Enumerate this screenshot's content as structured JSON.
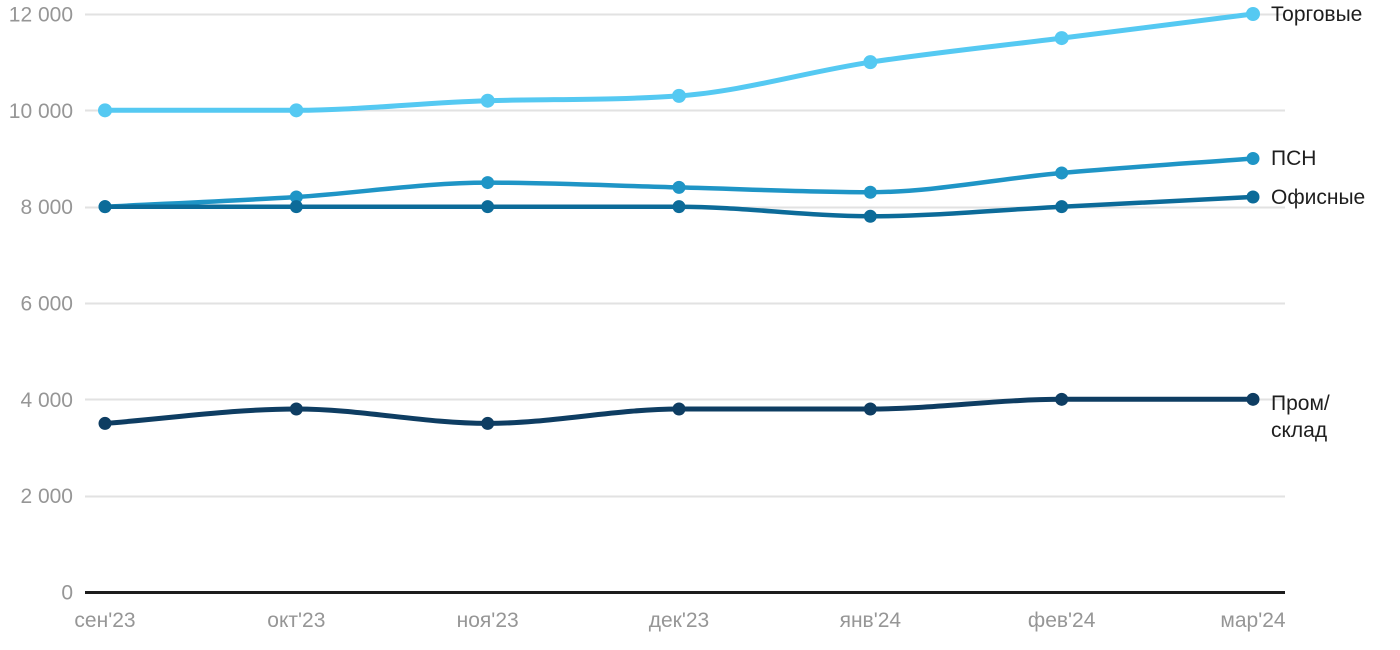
{
  "chart_data": {
    "type": "line",
    "categories": [
      "сен'23",
      "окт'23",
      "ноя'23",
      "дек'23",
      "янв'24",
      "фев'24",
      "мар'24"
    ],
    "series": [
      {
        "name": "Торговые",
        "values": [
          10000,
          10000,
          10200,
          10300,
          11000,
          11500,
          12000
        ],
        "color": "#55C9F2",
        "line_width": 5,
        "marker_radius": 7
      },
      {
        "name": "ПСН",
        "values": [
          8000,
          8200,
          8500,
          8400,
          8300,
          8700,
          9000
        ],
        "color": "#1F95C6",
        "line_width": 4.5,
        "marker_radius": 6.5
      },
      {
        "name": "Офисные",
        "values": [
          8000,
          8000,
          8000,
          8000,
          7800,
          8000,
          8200
        ],
        "color": "#0C6B99",
        "line_width": 4.5,
        "marker_radius": 6.5
      },
      {
        "name": "Пром/склад",
        "label_lines": [
          "Пром/",
          "склад"
        ],
        "values": [
          3500,
          3800,
          3500,
          3800,
          3800,
          4000,
          4000
        ],
        "color": "#0E3D62",
        "line_width": 5,
        "marker_radius": 6.5
      }
    ],
    "title": "",
    "xlabel": "",
    "ylabel": "",
    "ylim": [
      0,
      12000
    ],
    "y_ticks": [
      {
        "value": 0,
        "label": "0"
      },
      {
        "value": 2000,
        "label": "2 000"
      },
      {
        "value": 4000,
        "label": "4 000"
      },
      {
        "value": 6000,
        "label": "6 000"
      },
      {
        "value": 8000,
        "label": "8 000"
      },
      {
        "value": 10000,
        "label": "10 000"
      },
      {
        "value": 12000,
        "label": "12 000"
      }
    ],
    "grid": "horizontal",
    "legend_position": "right-inline-labels"
  },
  "colors": {
    "grid_line": "#E2E2E2",
    "axis_line": "#1C1C1C",
    "tick_text": "#969696",
    "series_label_text": "#1E1E1E",
    "background": "#FFFFFF"
  }
}
